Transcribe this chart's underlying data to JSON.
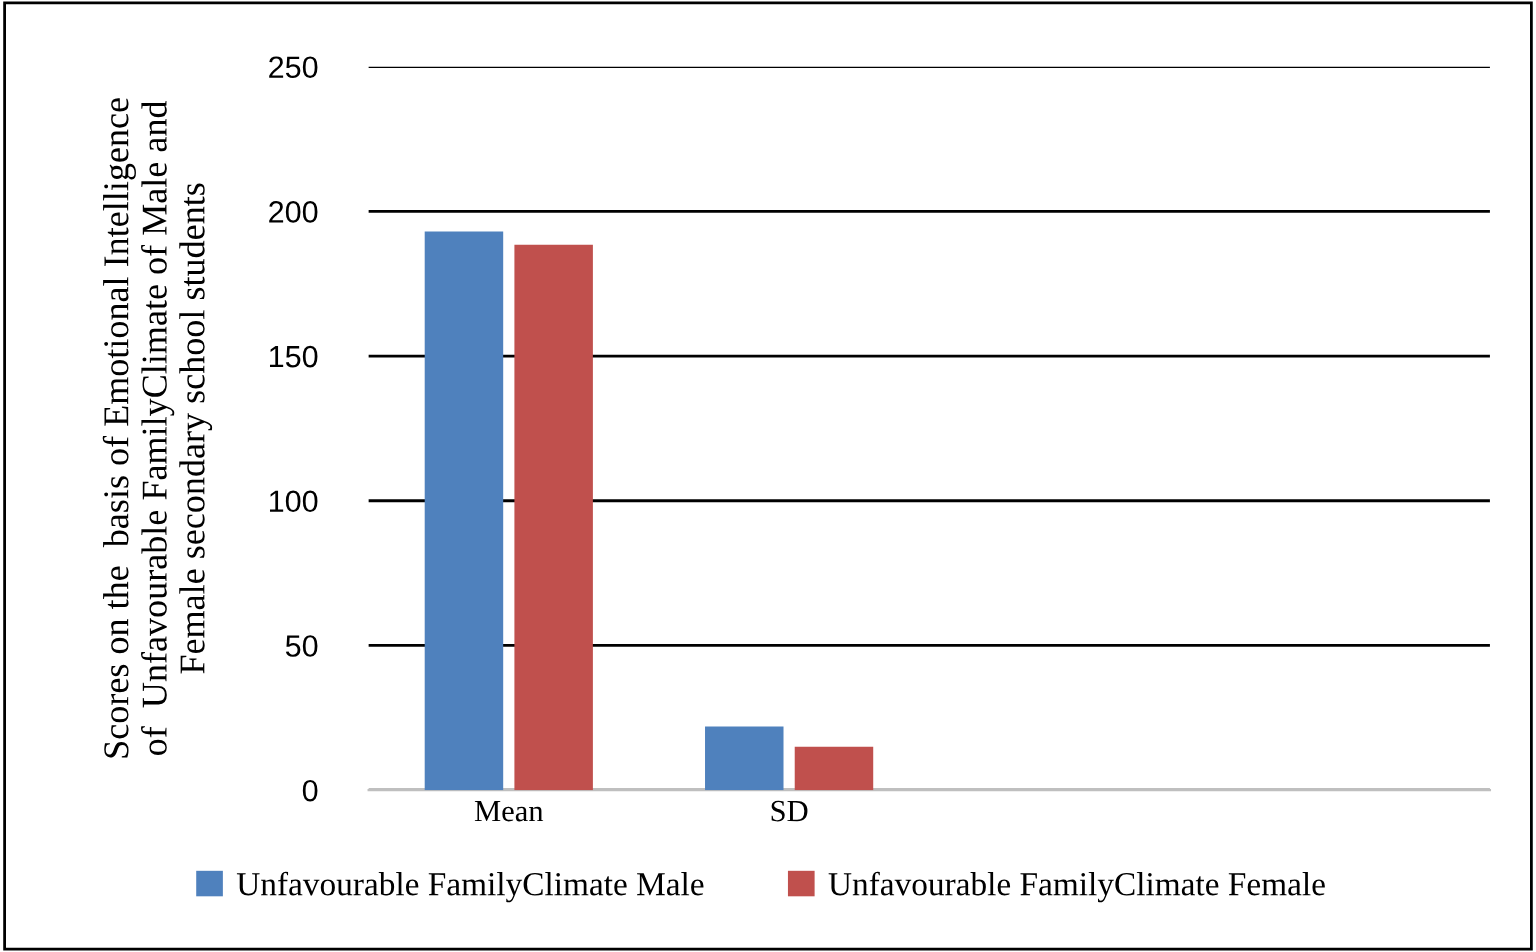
{
  "chart_data": {
    "type": "bar",
    "ylabel": "Scores on the  basis of Emotional Intelligence\nof  Unfavourable FamilyClimate of Male and\nFemale secondary school students",
    "categories": [
      "Mean",
      "SD",
      null,
      null
    ],
    "series": [
      {
        "name": "Unfavourable FamilyClimate Male",
        "color": "#4f81bd",
        "values": [
          193,
          22,
          null,
          null
        ]
      },
      {
        "name": "Unfavourable FamilyClimate Female",
        "color": "#c0504d",
        "values": [
          188.5,
          15,
          null,
          null
        ]
      }
    ],
    "ylim": [
      0,
      250
    ],
    "yticks": [
      0,
      50,
      100,
      150,
      200,
      250
    ],
    "grid": "y",
    "legend": "bottom"
  }
}
